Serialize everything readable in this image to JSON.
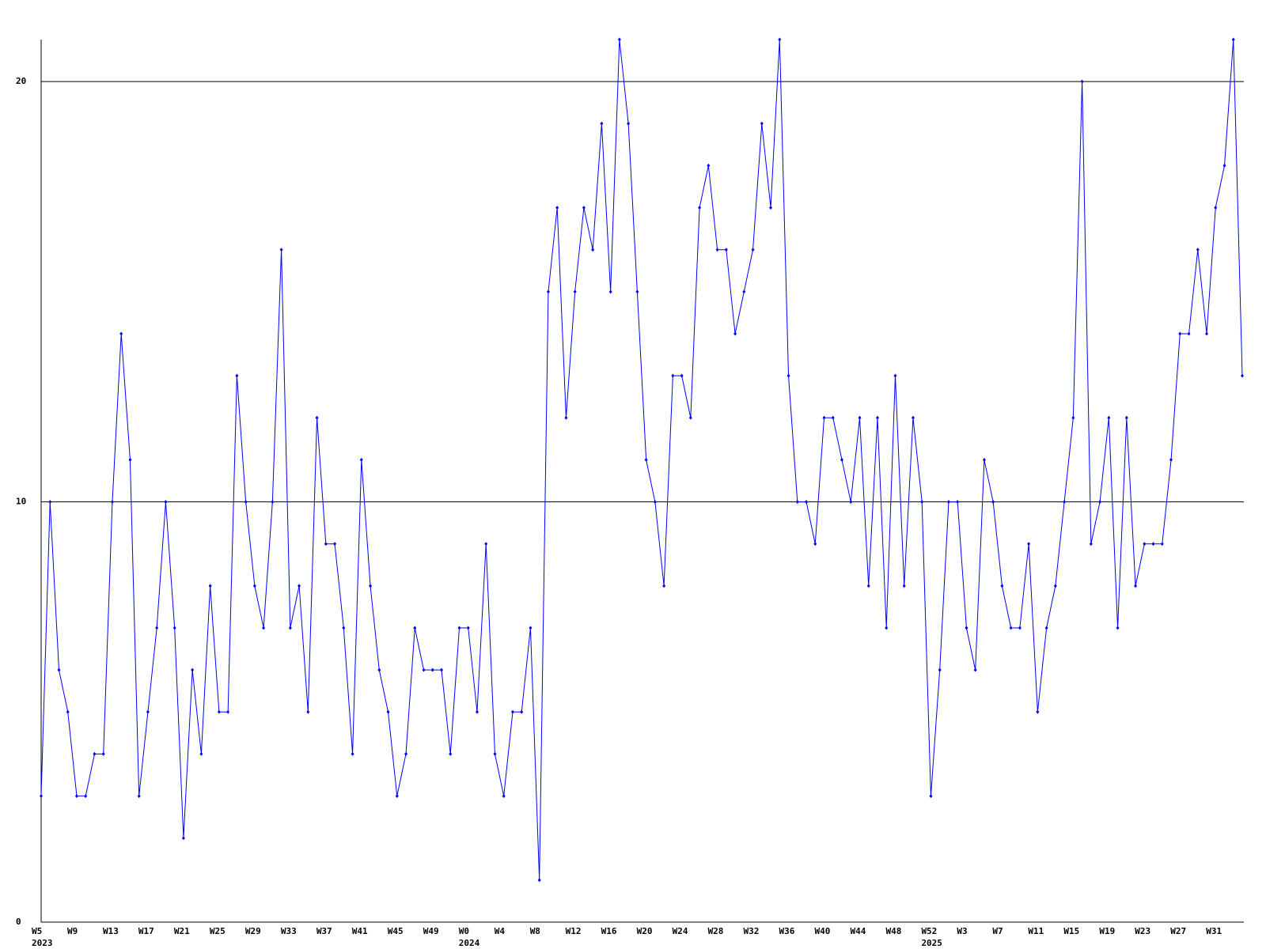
{
  "chart_data": {
    "type": "line",
    "categories": [
      "W5",
      null,
      null,
      null,
      "W9",
      null,
      null,
      null,
      "W13",
      null,
      null,
      null,
      "W17",
      null,
      null,
      null,
      "W21",
      null,
      null,
      null,
      "W25",
      null,
      null,
      null,
      "W29",
      null,
      null,
      null,
      "W33",
      null,
      null,
      null,
      "W37",
      null,
      null,
      null,
      "W41",
      null,
      null,
      null,
      "W45",
      null,
      null,
      null,
      "W49",
      null,
      null,
      null,
      "W0",
      null,
      null,
      null,
      "W4",
      null,
      null,
      null,
      "W8",
      null,
      null,
      null,
      "W12",
      null,
      null,
      null,
      "W16",
      null,
      null,
      null,
      "W20",
      null,
      null,
      null,
      "W24",
      null,
      null,
      null,
      "W28",
      null,
      null,
      null,
      "W32",
      null,
      null,
      null,
      "W36",
      null,
      null,
      null,
      "W40",
      null,
      null,
      null,
      "W44",
      null,
      null,
      null,
      "W48",
      null,
      null,
      null,
      "W52",
      null,
      null,
      null,
      "W3",
      null,
      null,
      null,
      "W7",
      null,
      null,
      null,
      "W11",
      null,
      null,
      null,
      "W15",
      null,
      null,
      null,
      "W19",
      null,
      null,
      null,
      "W23",
      null,
      null,
      null,
      "W27",
      null,
      null,
      null,
      "W31",
      null,
      null,
      null
    ],
    "category_years": [
      "2023",
      null,
      null,
      null,
      null,
      null,
      null,
      null,
      null,
      null,
      null,
      null,
      null,
      null,
      null,
      null,
      null,
      null,
      null,
      null,
      null,
      null,
      null,
      null,
      null,
      null,
      null,
      null,
      null,
      null,
      null,
      null,
      null,
      null,
      null,
      null,
      null,
      null,
      null,
      null,
      null,
      null,
      null,
      null,
      null,
      null,
      null,
      null,
      "2024",
      null,
      null,
      null,
      null,
      null,
      null,
      null,
      null,
      null,
      null,
      null,
      null,
      null,
      null,
      null,
      null,
      null,
      null,
      null,
      null,
      null,
      null,
      null,
      null,
      null,
      null,
      null,
      null,
      null,
      null,
      null,
      null,
      null,
      null,
      null,
      null,
      null,
      null,
      null,
      null,
      null,
      null,
      null,
      null,
      null,
      null,
      null,
      null,
      null,
      null,
      null,
      "2025",
      null,
      null,
      null,
      null,
      null,
      null,
      null,
      null,
      null,
      null,
      null,
      null,
      null,
      null,
      null,
      null,
      null,
      null,
      null,
      null,
      null,
      null,
      null,
      null,
      null,
      null,
      null,
      null,
      null,
      null,
      null,
      null,
      null,
      null,
      null
    ],
    "series": [
      {
        "color": "#0000ff",
        "values": [
          3,
          10,
          6,
          5,
          3,
          3,
          4,
          4,
          10,
          14,
          11,
          3,
          5,
          7,
          10,
          7,
          2,
          6,
          4,
          8,
          5,
          5,
          13,
          10,
          8,
          7,
          10,
          16,
          7,
          8,
          5,
          12,
          9,
          9,
          7,
          4,
          11,
          8,
          6,
          5,
          3,
          4,
          7,
          6,
          6,
          6,
          4,
          7,
          7,
          5,
          9,
          4,
          3,
          5,
          5,
          7,
          1,
          15,
          17,
          12,
          15,
          17,
          16,
          19,
          15,
          21,
          19,
          15,
          11,
          10,
          8,
          13,
          13,
          12,
          17,
          18,
          16,
          16,
          14,
          15,
          16,
          19,
          17,
          21,
          13,
          10,
          10,
          9,
          12,
          12,
          11,
          10,
          12,
          8,
          12,
          7,
          13,
          8,
          12,
          10,
          3,
          6,
          10,
          10,
          7,
          6,
          11,
          10,
          8,
          7,
          7,
          9,
          5,
          7,
          8,
          10,
          12,
          20,
          9,
          10,
          12,
          7,
          12,
          8,
          9,
          9,
          9,
          11,
          14,
          14,
          16,
          14,
          17,
          18,
          21,
          13
        ]
      }
    ],
    "ylim": [
      0,
      21
    ],
    "yticks": [
      0,
      10,
      20
    ],
    "grid": true
  }
}
